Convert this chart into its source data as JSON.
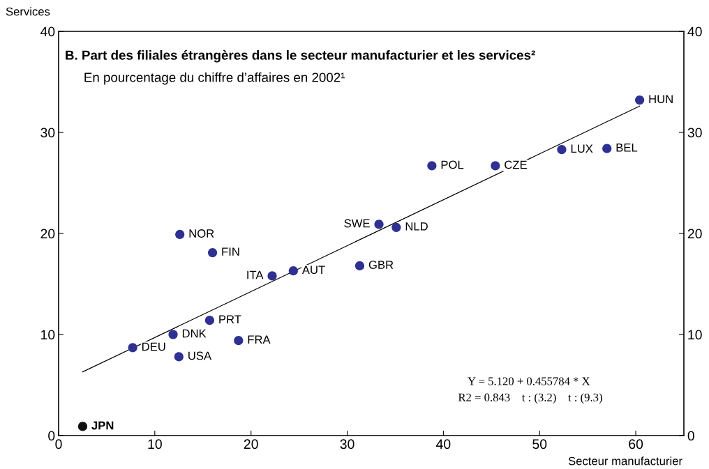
{
  "chart_data": {
    "type": "scatter",
    "title": "B. Part des filiales étrangères dans le secteur manufacturier et les services²",
    "subtitle": "En pourcentage du chiffre d’affaires en 2002¹",
    "xlabel": "Secteur manufacturier",
    "ylabel": "Services",
    "xlim": [
      0,
      65
    ],
    "xticks": [
      0,
      10,
      20,
      30,
      40,
      50,
      60
    ],
    "ylim": [
      0,
      40
    ],
    "yticks": [
      0,
      10,
      20,
      30,
      40
    ],
    "y2lim": [
      0,
      40
    ],
    "y2ticks": [
      0,
      10,
      20,
      30,
      40
    ],
    "grid": false,
    "marker": "circle",
    "series": [
      {
        "color": "#2e3192",
        "x": [
          60.4,
          57.0,
          52.3,
          45.4,
          38.8,
          35.1,
          33.3,
          31.3,
          24.4,
          22.2,
          12.6,
          16.0,
          15.7,
          18.7,
          11.9,
          7.7,
          12.5
        ],
        "values": [
          33.2,
          28.4,
          28.3,
          26.7,
          26.7,
          20.6,
          20.9,
          16.8,
          16.3,
          15.8,
          19.9,
          18.1,
          11.4,
          9.4,
          10.0,
          8.7,
          7.8
        ]
      },
      {
        "color": "#111111",
        "x": [
          2.5
        ],
        "values": [
          0.9
        ]
      },
      {
        "type": "line",
        "marker": "none",
        "color": "#000000",
        "x": [
          2.5,
          60.4
        ],
        "values": [
          6.3,
          32.6
        ]
      }
    ],
    "annotations": [
      {
        "text": "HUN",
        "x": 60.4,
        "y": 33.2
      },
      {
        "text": "BEL",
        "x": 57.0,
        "y": 28.4
      },
      {
        "text": "LUX",
        "x": 52.3,
        "y": 28.3
      },
      {
        "text": "CZE",
        "x": 45.4,
        "y": 26.7
      },
      {
        "text": "POL",
        "x": 38.8,
        "y": 26.7
      },
      {
        "text": "NLD",
        "x": 35.1,
        "y": 20.6
      },
      {
        "text": "SWE",
        "x": 33.3,
        "y": 20.9
      },
      {
        "text": "GBR",
        "x": 31.3,
        "y": 16.8
      },
      {
        "text": "AUT",
        "x": 24.4,
        "y": 16.3
      },
      {
        "text": "ITA",
        "x": 22.2,
        "y": 15.8
      },
      {
        "text": "NOR",
        "x": 12.6,
        "y": 19.9
      },
      {
        "text": "FIN",
        "x": 16.0,
        "y": 18.1
      },
      {
        "text": "PRT",
        "x": 15.7,
        "y": 11.4
      },
      {
        "text": "FRA",
        "x": 18.7,
        "y": 9.4
      },
      {
        "text": "DNK",
        "x": 11.9,
        "y": 10.0
      },
      {
        "text": "DEU",
        "x": 7.7,
        "y": 8.7
      },
      {
        "text": "USA",
        "x": 12.5,
        "y": 7.8
      },
      {
        "text": "JPN",
        "x": 2.5,
        "y": 0.9
      },
      "Y = 5.120 + 0.455784 * X",
      "R2 = 0.843    t : (3.2)    t : (9.3)"
    ]
  }
}
